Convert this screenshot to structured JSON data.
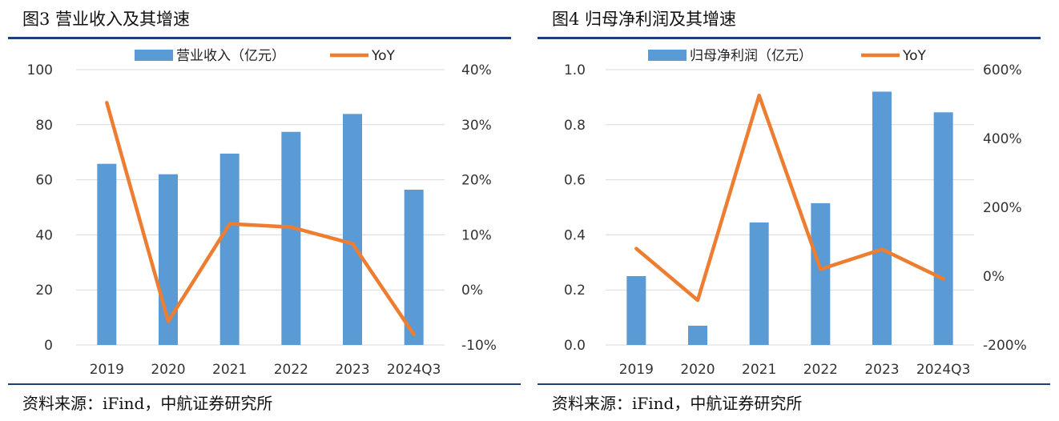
{
  "charts": [
    {
      "figure_title": "图3 营业收入及其增速",
      "source": "资料来源：iFind，中航证券研究所"
    },
    {
      "figure_title": "图4 归母净利润及其增速",
      "source": "资料来源：iFind，中航证券研究所"
    }
  ],
  "colors": {
    "bar": "#5b9bd5",
    "line": "#ed7d31",
    "rule": "#1f3f7a",
    "grid": "#d9d9d9"
  },
  "chart_data": [
    {
      "type": "bar",
      "categories": [
        "2019",
        "2020",
        "2021",
        "2022",
        "2023",
        "2024Q3"
      ],
      "series": [
        {
          "name": "营业收入（亿元）",
          "type": "bar",
          "axis": "left",
          "values": [
            65.8,
            62.0,
            69.5,
            77.4,
            83.9,
            56.4
          ]
        },
        {
          "name": "YoY",
          "type": "line",
          "axis": "right",
          "values": [
            34.0,
            -5.7,
            12.0,
            11.4,
            8.4,
            -8.1
          ]
        }
      ],
      "ylim_left": [
        0,
        100
      ],
      "yticks_left": [
        "0",
        "20",
        "40",
        "60",
        "80",
        "100"
      ],
      "ylim_right": [
        -10,
        40
      ],
      "yticks_right": [
        "-10%",
        "0%",
        "10%",
        "20%",
        "30%",
        "40%"
      ],
      "grid": true,
      "legend_position": "top"
    },
    {
      "type": "bar",
      "categories": [
        "2019",
        "2020",
        "2021",
        "2022",
        "2023",
        "2024Q3"
      ],
      "series": [
        {
          "name": "归母净利润（亿元）",
          "type": "bar",
          "axis": "left",
          "values": [
            0.25,
            0.07,
            0.445,
            0.515,
            0.92,
            0.845
          ]
        },
        {
          "name": "YoY",
          "type": "line",
          "axis": "right",
          "values": [
            80,
            -70,
            525,
            20,
            78,
            -8
          ]
        }
      ],
      "ylim_left": [
        0,
        1.0
      ],
      "yticks_left": [
        "0.0",
        "0.2",
        "0.4",
        "0.6",
        "0.8",
        "1.0"
      ],
      "ylim_right": [
        -200,
        600
      ],
      "yticks_right": [
        "-200%",
        "0%",
        "200%",
        "400%",
        "600%"
      ],
      "grid": true,
      "legend_position": "top"
    }
  ]
}
